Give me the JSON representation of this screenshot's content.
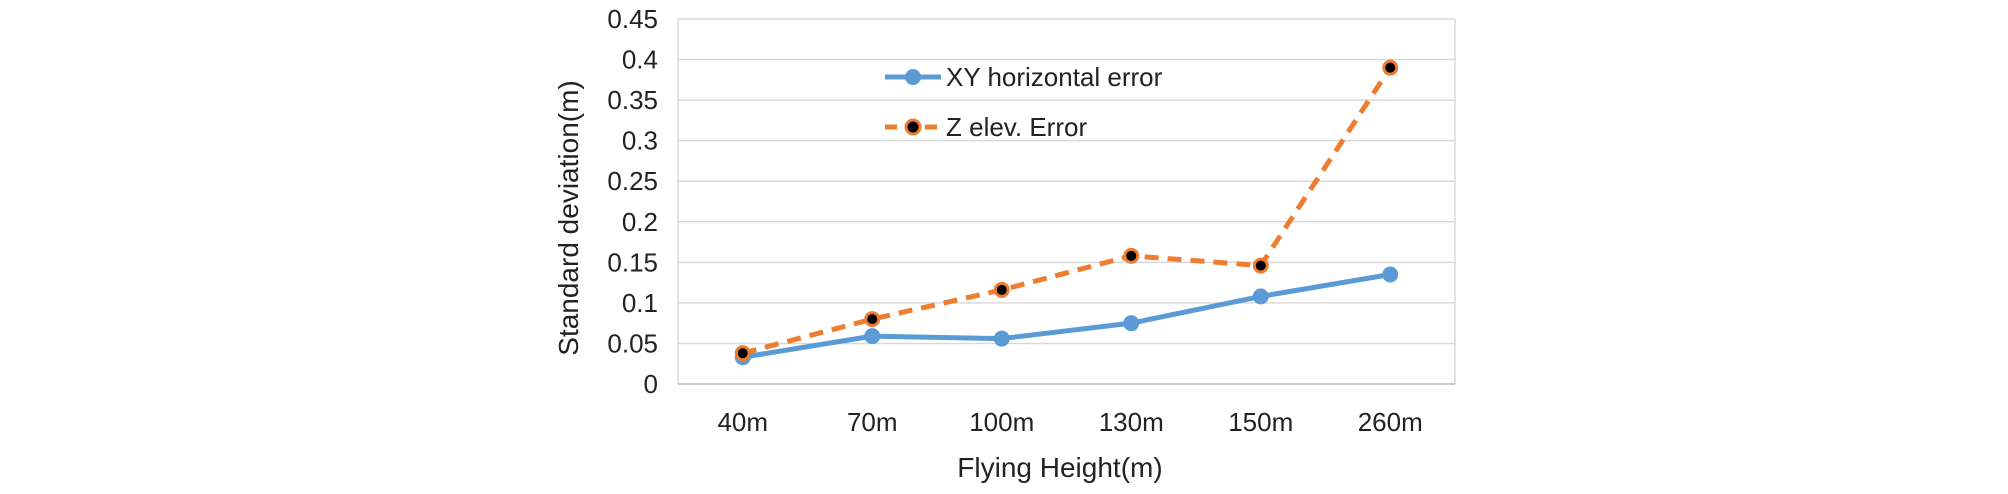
{
  "chart_data": {
    "type": "line",
    "categories": [
      "40m",
      "70m",
      "100m",
      "130m",
      "150m",
      "260m"
    ],
    "xlabel": "Flying Height(m)",
    "ylabel": "Standard deviation(m)",
    "ylim": [
      0,
      0.45
    ],
    "yticks": [
      "0",
      "0.05",
      "0.1",
      "0.15",
      "0.2",
      "0.25",
      "0.3",
      "0.35",
      "0.4",
      "0.45"
    ],
    "grid": true,
    "legend_position": "top-center",
    "series": [
      {
        "name": "XY horizontal error",
        "values": [
          0.033,
          0.059,
          0.056,
          0.075,
          0.108,
          0.135
        ],
        "color": "#5B9BD5",
        "style": "solid",
        "marker": "circle"
      },
      {
        "name": "Z elev. Error",
        "values": [
          0.038,
          0.08,
          0.116,
          0.158,
          0.146,
          0.39
        ],
        "color": "#ED7D31",
        "style": "dashed",
        "marker": "black-dot"
      }
    ]
  }
}
